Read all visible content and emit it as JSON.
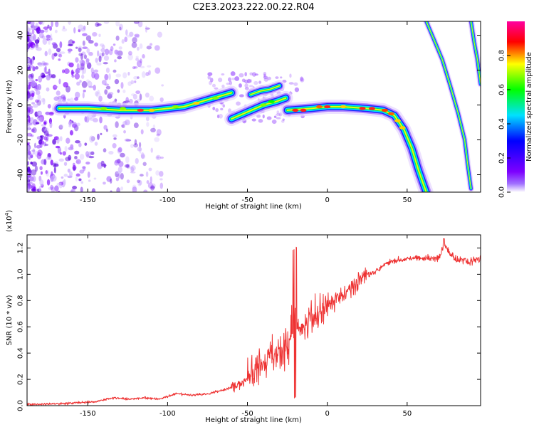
{
  "title": "C2E3.2023.222.00.22.R04",
  "chart_data": [
    {
      "type": "heatmap",
      "xlabel": "Height of straight line (km)",
      "ylabel": "Frequency (Hz)",
      "xlim": [
        -188,
        96
      ],
      "ylim": [
        -50,
        48
      ],
      "xticks": [
        -150,
        -100,
        -50,
        0,
        50
      ],
      "yticks": [
        -40,
        -20,
        0,
        20,
        40
      ],
      "colorbar": {
        "label": "Normalized spectral amplitude",
        "range": [
          0,
          1
        ],
        "ticks": [
          "0.0",
          "0.2",
          "0.4",
          "0.6",
          "0.8"
        ],
        "colors": [
          "#ffffff",
          "#7d00ff",
          "#0000ff",
          "#00e1ff",
          "#00ff00",
          "#ffff00",
          "#ff0000",
          "#ff00a0"
        ]
      },
      "ridges": [
        {
          "x": [
            -168,
            -150,
            -130,
            -110,
            -90,
            -75,
            -60
          ],
          "y": [
            -2,
            -2,
            -3,
            -3,
            -1,
            3,
            7
          ]
        },
        {
          "x": [
            -60,
            -50,
            -40,
            -32,
            -26
          ],
          "y": [
            -8,
            -4,
            0,
            2,
            4
          ]
        },
        {
          "x": [
            -48,
            -42,
            -36,
            -30
          ],
          "y": [
            6,
            8,
            9,
            11
          ]
        },
        {
          "x": [
            -25,
            -10,
            0,
            10,
            25,
            35,
            42,
            48,
            53,
            57,
            60,
            62
          ],
          "y": [
            -3,
            -2,
            -1,
            -1,
            -2,
            -3,
            -6,
            -14,
            -25,
            -37,
            -45,
            -50
          ]
        },
        {
          "x": [
            62,
            67,
            72,
            77,
            82,
            86,
            88,
            90
          ],
          "y": [
            48,
            37,
            26,
            11,
            -5,
            -20,
            -35,
            -48
          ]
        },
        {
          "x": [
            90,
            92,
            94,
            96
          ],
          "y": [
            48,
            36,
            26,
            12
          ]
        }
      ]
    },
    {
      "type": "line",
      "xlabel": "Height of straight line (km)",
      "ylabel": "SNR (10 * v/v)",
      "exponent_label": "(x10",
      "exponent_value": "4",
      "exponent_close": ")",
      "xlim": [
        -188,
        96
      ],
      "ylim": [
        0,
        1.3
      ],
      "xticks": [
        -150,
        -100,
        -50,
        0,
        50
      ],
      "yticks": [
        "0.0",
        "0.2",
        "0.4",
        "0.6",
        "0.8",
        "1.0",
        "1.2"
      ],
      "color": "#ee3333",
      "series": [
        {
          "x": [
            -188,
            -175,
            -160,
            -145,
            -135,
            -125,
            -115,
            -105,
            -95,
            -85,
            -75,
            -65,
            -55,
            -48,
            -42,
            -36,
            -30,
            -25,
            -22,
            -20,
            -17,
            -14,
            -10,
            -5,
            0,
            5,
            10,
            15,
            20,
            25,
            30,
            35,
            40,
            50,
            60,
            70,
            73,
            80,
            90,
            96
          ],
          "y": [
            0.01,
            0.01,
            0.02,
            0.03,
            0.06,
            0.05,
            0.06,
            0.05,
            0.09,
            0.08,
            0.09,
            0.12,
            0.16,
            0.22,
            0.3,
            0.38,
            0.4,
            0.45,
            0.6,
            0.7,
            0.55,
            0.6,
            0.65,
            0.7,
            0.78,
            0.8,
            0.85,
            0.9,
            0.95,
            1.0,
            1.02,
            1.07,
            1.1,
            1.12,
            1.12,
            1.12,
            1.22,
            1.12,
            1.1,
            1.12
          ]
        }
      ]
    }
  ]
}
